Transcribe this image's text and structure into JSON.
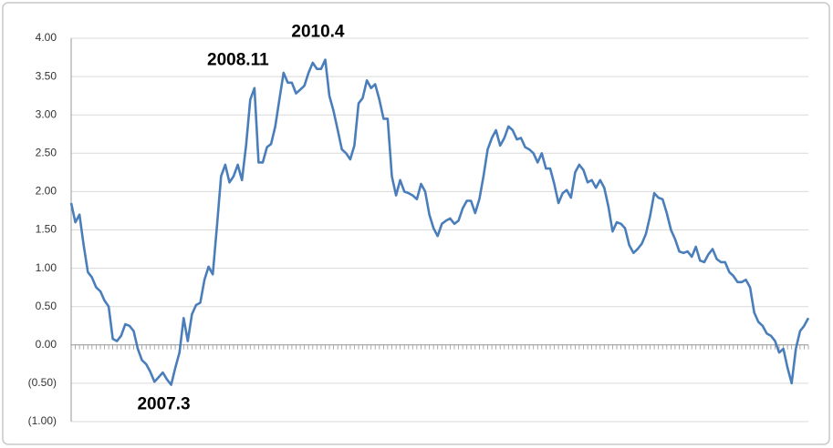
{
  "chart_data": {
    "type": "line",
    "values": [
      1.85,
      1.6,
      1.7,
      1.3,
      0.95,
      0.88,
      0.75,
      0.7,
      0.58,
      0.5,
      0.08,
      0.05,
      0.12,
      0.27,
      0.25,
      0.18,
      -0.05,
      -0.2,
      -0.25,
      -0.35,
      -0.48,
      -0.42,
      -0.36,
      -0.45,
      -0.52,
      -0.3,
      -0.1,
      0.35,
      0.05,
      0.4,
      0.52,
      0.55,
      0.85,
      1.02,
      0.92,
      1.55,
      2.2,
      2.35,
      2.12,
      2.2,
      2.35,
      2.15,
      2.6,
      3.2,
      3.35,
      2.38,
      2.38,
      2.58,
      2.62,
      2.85,
      3.2,
      3.55,
      3.42,
      3.42,
      3.28,
      3.33,
      3.38,
      3.55,
      3.68,
      3.6,
      3.6,
      3.72,
      3.25,
      3.05,
      2.8,
      2.55,
      2.5,
      2.42,
      2.6,
      3.15,
      3.22,
      3.45,
      3.35,
      3.4,
      3.2,
      2.95,
      2.95,
      2.2,
      1.95,
      2.15,
      2.0,
      1.98,
      1.95,
      1.9,
      2.1,
      2.0,
      1.7,
      1.52,
      1.42,
      1.58,
      1.62,
      1.65,
      1.58,
      1.62,
      1.78,
      1.88,
      1.88,
      1.72,
      1.9,
      2.2,
      2.55,
      2.7,
      2.8,
      2.6,
      2.7,
      2.85,
      2.8,
      2.68,
      2.7,
      2.58,
      2.55,
      2.5,
      2.38,
      2.5,
      2.3,
      2.3,
      2.1,
      1.85,
      1.98,
      2.02,
      1.92,
      2.25,
      2.35,
      2.28,
      2.12,
      2.15,
      2.05,
      2.15,
      2.05,
      1.8,
      1.48,
      1.6,
      1.58,
      1.52,
      1.3,
      1.2,
      1.25,
      1.32,
      1.45,
      1.68,
      1.98,
      1.92,
      1.9,
      1.72,
      1.5,
      1.38,
      1.22,
      1.2,
      1.22,
      1.15,
      1.28,
      1.1,
      1.08,
      1.18,
      1.25,
      1.12,
      1.08,
      1.08,
      0.95,
      0.9,
      0.82,
      0.82,
      0.85,
      0.75,
      0.42,
      0.3,
      0.25,
      0.15,
      0.12,
      0.05,
      -0.1,
      -0.05,
      -0.3,
      -0.5,
      -0.05,
      0.18,
      0.25,
      0.35
    ],
    "color": "#4a7ebb",
    "ylim": [
      -1,
      4
    ],
    "yticks": [
      {
        "value": 4,
        "label": "4.00"
      },
      {
        "value": 3.5,
        "label": "3.50"
      },
      {
        "value": 3,
        "label": "3.00"
      },
      {
        "value": 2.5,
        "label": "2.50"
      },
      {
        "value": 2,
        "label": "2.00"
      },
      {
        "value": 1.5,
        "label": "1.50"
      },
      {
        "value": 1,
        "label": "1.00"
      },
      {
        "value": 0.5,
        "label": "0.50"
      },
      {
        "value": 0,
        "label": "0.00"
      },
      {
        "value": -0.5,
        "label": "(0.50)"
      },
      {
        "value": -1,
        "label": "(1.00)"
      }
    ],
    "negative_tick_color": "#c0504d",
    "grid": true,
    "annotations": [
      {
        "text": "2007.3",
        "point": 24
      },
      {
        "text": "2008.11",
        "point": 44
      },
      {
        "text": "2010.4",
        "point": 61
      }
    ]
  }
}
